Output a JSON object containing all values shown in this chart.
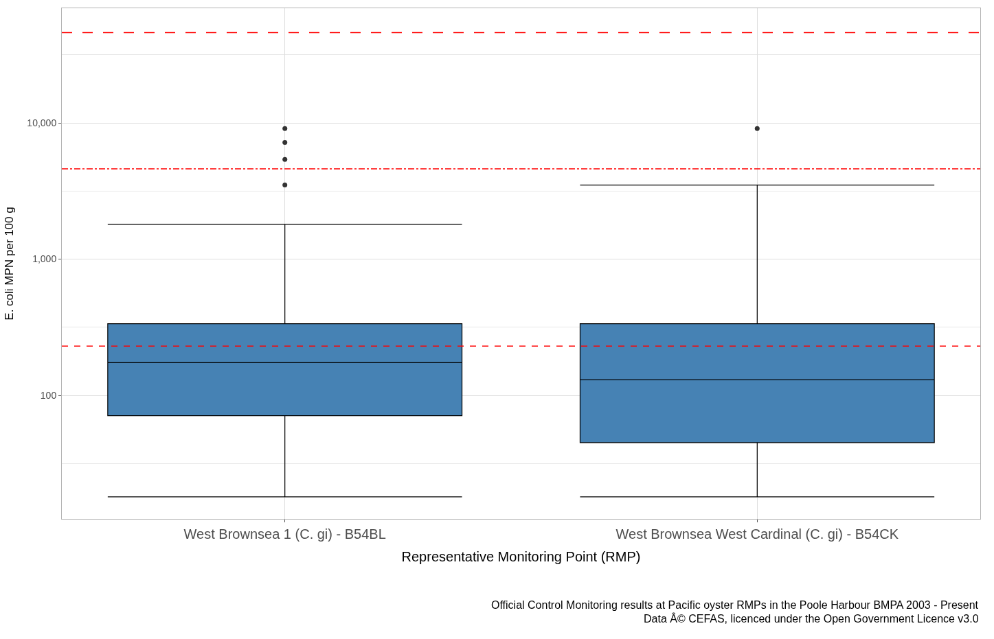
{
  "chart_data": {
    "type": "box",
    "categories": [
      "West Brownsea 1 (C. gi) - B54BL",
      "West Brownsea West Cardinal (C. gi) - B54CK"
    ],
    "boxes": [
      {
        "low": 18,
        "q1": 71,
        "median": 174,
        "q3": 336,
        "high": 1800,
        "outliers": [
          3500,
          5400,
          7200,
          9100
        ]
      },
      {
        "low": 18,
        "q1": 45,
        "median": 130,
        "q3": 336,
        "high": 3500,
        "outliers": [
          9100
        ]
      }
    ],
    "color": "#4682b4",
    "xlabel": "Representative Monitoring Point (RMP)",
    "ylabel": "E. coli MPN per 100 g",
    "log": "y",
    "ylim": [
      12.4,
      69500
    ],
    "yticks": [
      {
        "value": 31.6,
        "label": null
      },
      {
        "value": 100,
        "label": "100"
      },
      {
        "value": 316,
        "label": null
      },
      {
        "value": 1000,
        "label": "1,000"
      },
      {
        "value": 3162,
        "label": null
      },
      {
        "value": 10000,
        "label": "10,000"
      },
      {
        "value": 31623,
        "label": null
      }
    ],
    "grid": true,
    "ref_lines": [
      {
        "axis": "y",
        "value": 46000,
        "color": "#ff0000",
        "line_style": "longdash"
      },
      {
        "axis": "y",
        "value": 4600,
        "color": "#ff0000",
        "line_style": "dashdot"
      },
      {
        "axis": "y",
        "value": 230,
        "color": "#ff0000",
        "line_style": "dashed"
      }
    ],
    "annotations": [
      "Official Control Monitoring results at Pacific oyster RMPs in the Poole Harbour BMPA 2003 - Present",
      "Data Â© CEFAS, licenced under the Open Government Licence v3.0"
    ]
  }
}
